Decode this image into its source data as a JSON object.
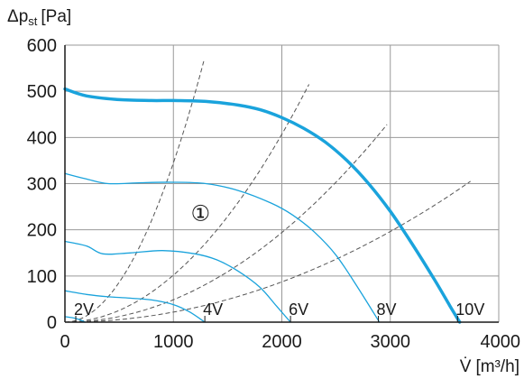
{
  "chart_data": {
    "type": "line",
    "ylabel": {
      "main": "Δp",
      "sub": "st",
      "unit": "[Pa]"
    },
    "xlabel": {
      "main": "V̇",
      "unit": "[m³/h]"
    },
    "xlim": [
      0,
      4000
    ],
    "ylim": [
      0,
      600
    ],
    "xticks": [
      0,
      1000,
      2000,
      3000,
      4000
    ],
    "yticks": [
      0,
      100,
      200,
      300,
      400,
      500,
      600
    ],
    "grid": true,
    "colors": {
      "curve": "#1aa3dc",
      "system": "#555555",
      "grid": "#999999",
      "axis": "#1a1a1a"
    },
    "series": [
      {
        "name": "10V",
        "bold": true,
        "label_at": [
          3620,
          0
        ],
        "x": [
          0,
          200,
          500,
          800,
          1000,
          1300,
          1600,
          1800,
          2000,
          2200,
          2400,
          2600,
          2800,
          3000,
          3200,
          3400,
          3550,
          3640
        ],
        "y": [
          505,
          490,
          482,
          480,
          480,
          478,
          470,
          460,
          443,
          420,
          390,
          350,
          300,
          240,
          170,
          95,
          35,
          0
        ]
      },
      {
        "name": "8V",
        "label_at": [
          2890,
          0
        ],
        "x": [
          0,
          200,
          400,
          700,
          1000,
          1300,
          1600,
          1900,
          2100,
          2300,
          2500,
          2700,
          2900
        ],
        "y": [
          322,
          310,
          300,
          302,
          303,
          300,
          285,
          258,
          232,
          195,
          145,
          75,
          0
        ]
      },
      {
        "name": "6V",
        "label_at": [
          2080,
          0
        ],
        "x": [
          0,
          200,
          350,
          600,
          900,
          1200,
          1400,
          1600,
          1800,
          1950,
          2080
        ],
        "y": [
          175,
          165,
          148,
          150,
          155,
          148,
          135,
          110,
          75,
          35,
          0
        ]
      },
      {
        "name": "4V",
        "label_at": [
          1290,
          0
        ],
        "x": [
          0,
          200,
          400,
          600,
          800,
          1000,
          1150,
          1290
        ],
        "y": [
          68,
          60,
          55,
          52,
          48,
          38,
          22,
          0
        ]
      },
      {
        "name": "2V",
        "label_at": [
          100,
          0
        ],
        "x": [
          0,
          100,
          190
        ],
        "y": [
          12,
          8,
          0
        ]
      }
    ],
    "system_curves": [
      {
        "end": [
          1280,
          565
        ]
      },
      {
        "end": [
          2250,
          515
        ]
      },
      {
        "end": [
          2970,
          428
        ]
      },
      {
        "end": [
          3740,
          305
        ]
      }
    ],
    "annotations": [
      {
        "text": "①",
        "x": 1250,
        "y": 220
      }
    ]
  }
}
